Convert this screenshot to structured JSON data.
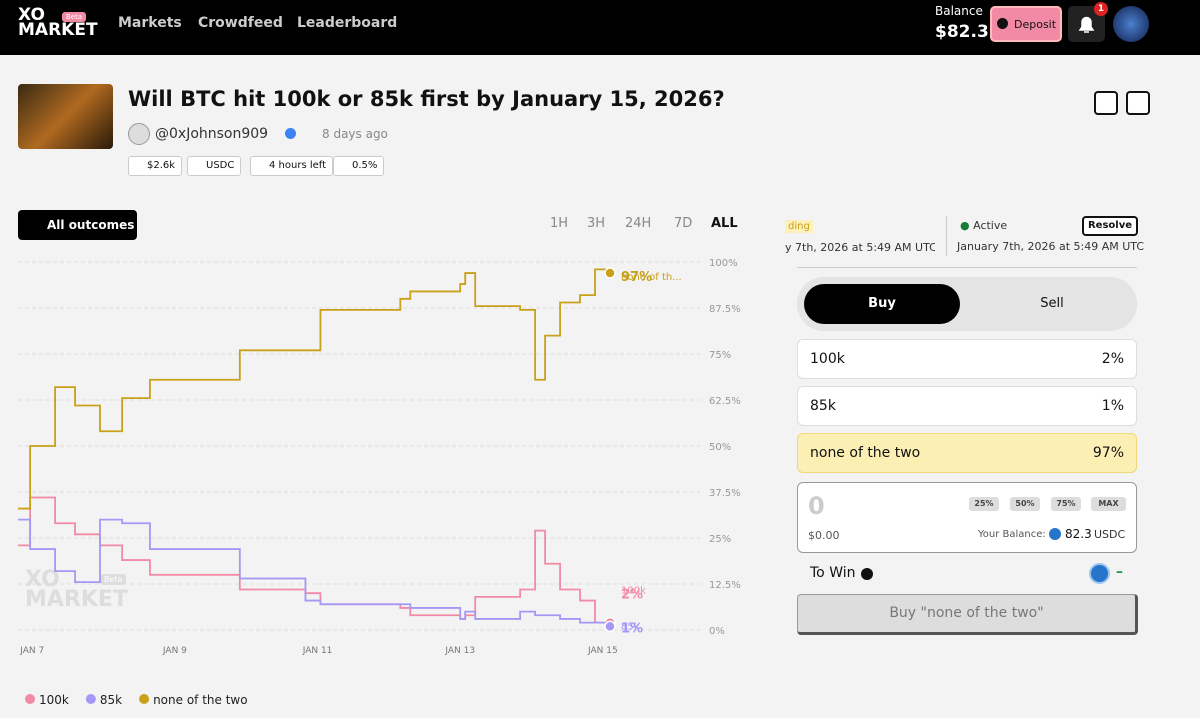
{
  "nav": {
    "logo_top": "XO",
    "logo_bottom": "MARKET",
    "beta": "Beta",
    "links": [
      "Markets",
      "Crowdfeed",
      "Leaderboard"
    ],
    "balance_label": "Balance",
    "balance": "$82.3",
    "deposit": "Deposit",
    "notifications": "1"
  },
  "market": {
    "title": "Will BTC hit 100k or 85k first by January 15, 2026?",
    "author": "@0xJohnson909",
    "time": "8 days ago",
    "chips": [
      "$2.6k",
      "USDC",
      "4 hours left",
      "0.5%"
    ]
  },
  "chart_controls": {
    "outcomes_button": "All outcomes",
    "ranges": [
      "1H",
      "3H",
      "24H",
      "7D",
      "ALL"
    ]
  },
  "chart_watermark": {
    "top": "XO",
    "bottom": "MARKET",
    "beta": "Beta"
  },
  "chart_data": {
    "type": "line",
    "step": true,
    "x": [
      6.8,
      6.97,
      7.32,
      7.6,
      7.95,
      8.26,
      8.65,
      9.91,
      10.83,
      11.04,
      12.16,
      12.3,
      13.0,
      13.07,
      13.21,
      13.84,
      14.05,
      14.19,
      14.4,
      14.68,
      14.89,
      15.1
    ],
    "xlim": [
      6.8,
      15.1
    ],
    "xticks": [
      {
        "value": 7,
        "label": "JAN 7"
      },
      {
        "value": 9,
        "label": "JAN 9"
      },
      {
        "value": 11,
        "label": "JAN 11"
      },
      {
        "value": 13,
        "label": "JAN 13"
      },
      {
        "value": 15,
        "label": "JAN 15"
      }
    ],
    "ylim": [
      0,
      100
    ],
    "yticks": [
      {
        "value": 0,
        "label": "0%"
      },
      {
        "value": 12.5,
        "label": "12.5%"
      },
      {
        "value": 25,
        "label": "25%"
      },
      {
        "value": 37.5,
        "label": "37.5%"
      },
      {
        "value": 50,
        "label": "50%"
      },
      {
        "value": 62.5,
        "label": "62.5%"
      },
      {
        "value": 75,
        "label": "75%"
      },
      {
        "value": 87.5,
        "label": "87.5%"
      },
      {
        "value": 100,
        "label": "100%"
      }
    ],
    "grid": true,
    "legend": "bottom-left",
    "series": [
      {
        "name": "100k",
        "color": "#f28aa5",
        "end_label": "2%",
        "values": [
          23,
          36,
          29,
          26,
          23,
          19,
          15,
          11,
          10,
          7,
          6,
          4,
          3,
          4,
          9,
          11,
          27,
          18,
          11,
          8,
          2,
          2
        ]
      },
      {
        "name": "85k",
        "color": "#a398f5",
        "end_label": "1%",
        "values": [
          30,
          22,
          16,
          13,
          30,
          29,
          22,
          14,
          8,
          7,
          7,
          6,
          3,
          5,
          3,
          5,
          4,
          4,
          3,
          2,
          2,
          1
        ]
      },
      {
        "name": "none of the two",
        "short_name": "none of th...",
        "color": "#c9a01a",
        "end_label": "97%",
        "values": [
          33,
          50,
          66,
          61,
          54,
          63,
          68,
          76,
          76,
          87,
          90,
          92,
          94,
          97,
          88,
          87,
          68,
          80,
          89,
          91,
          98,
          97
        ]
      }
    ]
  },
  "timeline": {
    "prev_status": "ding",
    "prev_date": "y 7th, 2026 at 5:49 AM UTC",
    "status": "Active",
    "date": "January 7th, 2026 at 5:49 AM UTC",
    "resolve": "Resolve"
  },
  "trade": {
    "tabs": [
      "Buy",
      "Sell"
    ],
    "outcomes": [
      {
        "name": "100k",
        "price": "2%"
      },
      {
        "name": "85k",
        "price": "1%"
      },
      {
        "name": "none of the two",
        "price": "97%"
      }
    ],
    "amount": "0",
    "quick": [
      "25%",
      "50%",
      "75%",
      "MAX"
    ],
    "amount_usd": "$0.00",
    "balance_label": "Your Balance:",
    "balance": "82.3",
    "currency": "USDC",
    "to_win": "To Win",
    "to_win_value": "–",
    "submit": "Buy \"none of the two\""
  }
}
